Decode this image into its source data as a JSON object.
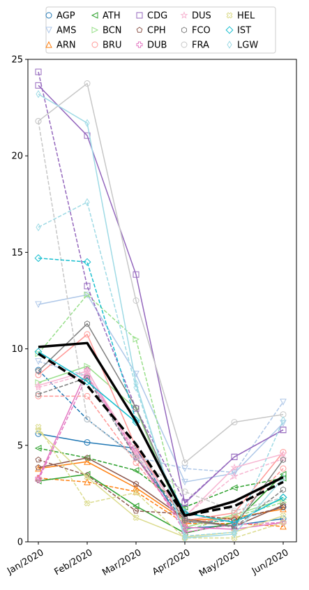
{
  "chart_data": {
    "type": "line",
    "title": "",
    "xlabel": "",
    "ylabel": "",
    "categories": [
      "Jan/2020",
      "Feb/2020",
      "Mar/2020",
      "Apr/2020",
      "May/2020",
      "Jun/2020"
    ],
    "ylim": [
      0,
      25
    ],
    "yticks": [
      "0",
      "5",
      "10",
      "15",
      "20",
      "25"
    ],
    "grid": false,
    "legend_position": "top-center",
    "legend": {
      "AGP": "AGP",
      "AMS": "AMS",
      "ARN": "ARN",
      "ATH": "ATH",
      "BCN": "BCN",
      "BRU": "BRU",
      "CDG": "CDG",
      "CPH": "CPH",
      "DUB": "DUB",
      "DUS": "DUS",
      "FCO": "FCO",
      "FRA": "FRA",
      "HEL": "HEL",
      "IST": "IST",
      "LGW": "LGW"
    },
    "series": [
      {
        "name": "AGP",
        "color": "#1f77b4",
        "marker": "circle",
        "lines": [
          {
            "dash": "solid",
            "values": [
              5.6,
              5.15,
              4.85,
              0.7,
              0.85,
              1.2
            ]
          },
          {
            "dash": "dashed",
            "values": [
              8.9,
              6.35,
              4.4,
              1.0,
              1.1,
              1.8
            ]
          }
        ]
      },
      {
        "name": "AMS",
        "color": "#aec7e8",
        "marker": "triangle-down",
        "lines": [
          {
            "dash": "solid",
            "values": [
              12.3,
              12.8,
              8.7,
              3.1,
              3.55,
              6.15
            ]
          },
          {
            "dash": "dashed",
            "values": [
              9.35,
              8.6,
              4.4,
              3.8,
              3.6,
              7.25
            ]
          }
        ]
      },
      {
        "name": "ARN",
        "color": "#ff7f0e",
        "marker": "triangle-up",
        "lines": [
          {
            "dash": "solid",
            "values": [
              3.8,
              4.15,
              2.8,
              1.1,
              1.25,
              1.7
            ]
          },
          {
            "dash": "dashed",
            "values": [
              3.3,
              3.1,
              2.6,
              0.95,
              0.95,
              0.8
            ]
          }
        ]
      },
      {
        "name": "ATH",
        "color": "#2ca02c",
        "marker": "triangle-left",
        "lines": [
          {
            "dash": "solid",
            "values": [
              3.15,
              3.5,
              1.85,
              0.45,
              1.0,
              3.5
            ]
          },
          {
            "dash": "dashed",
            "values": [
              4.85,
              4.35,
              3.7,
              1.8,
              2.8,
              3.3
            ]
          }
        ]
      },
      {
        "name": "BCN",
        "color": "#98df8a",
        "marker": "triangle-right",
        "lines": [
          {
            "dash": "solid",
            "values": [
              8.25,
              9.1,
              6.9,
              0.75,
              1.4,
              2.2
            ]
          },
          {
            "dash": "dashed",
            "values": [
              9.75,
              12.8,
              10.5,
              0.6,
              1.3,
              2.05
            ]
          }
        ]
      },
      {
        "name": "BRU",
        "color": "#ff9896",
        "marker": "circle",
        "lines": [
          {
            "dash": "solid",
            "values": [
              8.65,
              10.75,
              4.9,
              1.1,
              1.5,
              4.65
            ]
          },
          {
            "dash": "dashed",
            "values": [
              7.55,
              7.55,
              4.1,
              1.0,
              1.2,
              3.8
            ]
          }
        ]
      },
      {
        "name": "CDG",
        "color": "#9467bd",
        "marker": "square",
        "lines": [
          {
            "dash": "solid",
            "values": [
              23.65,
              21.05,
              13.85,
              2.0,
              4.4,
              5.8
            ]
          },
          {
            "dash": "dashed",
            "values": [
              24.35,
              13.25,
              6.9,
              2.05,
              4.4,
              5.8
            ]
          }
        ]
      },
      {
        "name": "CPH",
        "color": "#8c564b",
        "marker": "pentagon",
        "lines": [
          {
            "dash": "solid",
            "values": [
              3.85,
              4.35,
              3.0,
              1.2,
              0.8,
              1.9
            ]
          },
          {
            "dash": "dashed",
            "values": [
              4.25,
              3.45,
              1.6,
              1.45,
              1.15,
              1.8
            ]
          }
        ]
      },
      {
        "name": "DUB",
        "color": "#e377c2",
        "marker": "plus",
        "lines": [
          {
            "dash": "solid",
            "values": [
              3.3,
              8.9,
              4.4,
              0.75,
              0.65,
              1.0
            ]
          },
          {
            "dash": "dashed",
            "values": [
              3.2,
              8.6,
              4.6,
              0.5,
              0.9,
              1.0
            ]
          }
        ]
      },
      {
        "name": "DUS",
        "color": "#f7b6d2",
        "marker": "star",
        "lines": [
          {
            "dash": "solid",
            "values": [
              8.1,
              8.85,
              4.7,
              1.3,
              3.85,
              4.55
            ]
          },
          {
            "dash": "dashed",
            "values": [
              8.0,
              8.7,
              4.5,
              1.35,
              3.4,
              4.3
            ]
          }
        ]
      },
      {
        "name": "FCO",
        "color": "#7f7f7f",
        "marker": "hexagon",
        "lines": [
          {
            "dash": "solid",
            "values": [
              8.85,
              11.3,
              6.95,
              1.1,
              0.8,
              4.25
            ]
          },
          {
            "dash": "dashed",
            "values": [
              7.65,
              8.5,
              4.35,
              1.2,
              0.75,
              2.7
            ]
          }
        ]
      },
      {
        "name": "FRA",
        "color": "#c7c7c7",
        "marker": "circle",
        "lines": [
          {
            "dash": "solid",
            "values": [
              21.8,
              23.75,
              12.5,
              4.1,
              6.2,
              6.6
            ]
          },
          {
            "dash": "dashed",
            "values": [
              21.8,
              6.35,
              4.35,
              2.6,
              1.6,
              2.3
            ]
          }
        ]
      },
      {
        "name": "HEL",
        "color": "#dbdb8d",
        "marker": "x",
        "lines": [
          {
            "dash": "solid",
            "values": [
              5.75,
              3.35,
              1.25,
              0.25,
              0.5,
              1.35
            ]
          },
          {
            "dash": "dashed",
            "values": [
              5.95,
              2.0,
              2.55,
              0.2,
              0.2,
              1.0
            ]
          }
        ]
      },
      {
        "name": "IST",
        "color": "#17becf",
        "marker": "diamond",
        "lines": [
          {
            "dash": "solid",
            "values": [
              9.85,
              8.3,
              6.2,
              1.5,
              1.0,
              2.3
            ]
          },
          {
            "dash": "dashed",
            "values": [
              14.7,
              14.5,
              6.3,
              1.5,
              1.0,
              2.3
            ]
          }
        ]
      },
      {
        "name": "LGW",
        "color": "#9edae5",
        "marker": "thin-diamond",
        "lines": [
          {
            "dash": "solid",
            "values": [
              23.2,
              21.7,
              8.2,
              0.2,
              0.4,
              3.3
            ]
          },
          {
            "dash": "dashed",
            "values": [
              16.3,
              17.6,
              8.0,
              0.3,
              0.5,
              6.3
            ]
          }
        ]
      }
    ],
    "aggregate_lines": [
      {
        "dash": "solid",
        "color": "#000000",
        "values": [
          10.1,
          10.3,
          6.25,
          1.35,
          2.1,
          3.35
        ]
      },
      {
        "dash": "dashed",
        "color": "#000000",
        "values": [
          9.75,
          8.1,
          5.05,
          1.35,
          1.85,
          3.1
        ]
      }
    ]
  }
}
